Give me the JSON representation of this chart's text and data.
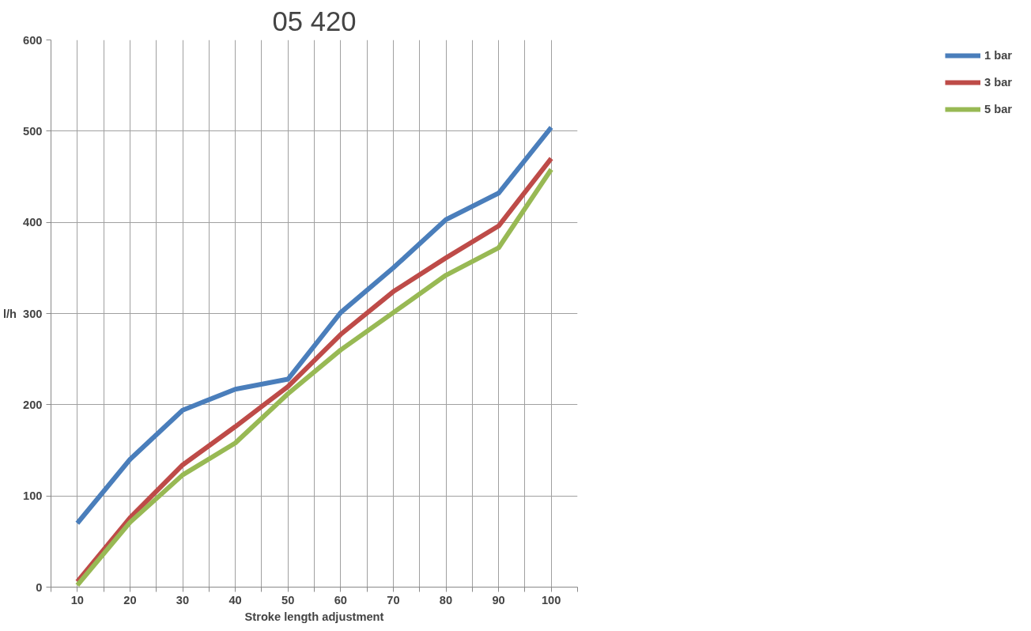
{
  "chart_data": {
    "type": "line",
    "title": "05 420",
    "xlabel": "Stroke length adjustment",
    "ylabel": "l/h",
    "x": [
      10,
      20,
      30,
      40,
      50,
      60,
      70,
      80,
      90,
      100
    ],
    "series": [
      {
        "name": "1 bar",
        "color": "#4a7ebb",
        "values": [
          70,
          140,
          194,
          217,
          228,
          301,
          350,
          403,
          432,
          504
        ]
      },
      {
        "name": "3 bar",
        "color": "#be4b48",
        "values": [
          6,
          76,
          134,
          176,
          220,
          277,
          324,
          361,
          396,
          470
        ]
      },
      {
        "name": "5 bar",
        "color": "#98b954",
        "values": [
          2,
          71,
          123,
          158,
          212,
          260,
          301,
          342,
          372,
          458
        ]
      }
    ],
    "xlim": [
      5,
      105
    ],
    "xticks": [
      {
        "value": 5,
        "label": null
      },
      10,
      {
        "value": 15,
        "label": null
      },
      20,
      {
        "value": 25,
        "label": null
      },
      30,
      {
        "value": 35,
        "label": null
      },
      40,
      {
        "value": 45,
        "label": null
      },
      50,
      {
        "value": 55,
        "label": null
      },
      60,
      {
        "value": 65,
        "label": null
      },
      70,
      {
        "value": 75,
        "label": null
      },
      80,
      {
        "value": 85,
        "label": null
      },
      90,
      {
        "value": 95,
        "label": null
      },
      100,
      {
        "value": 105,
        "label": null
      }
    ],
    "ylim": [
      0,
      600
    ],
    "yticks": [
      0,
      100,
      200,
      300,
      400,
      500,
      600
    ],
    "grid": true,
    "legend": "right",
    "marker": "none",
    "line_style": "solid"
  }
}
